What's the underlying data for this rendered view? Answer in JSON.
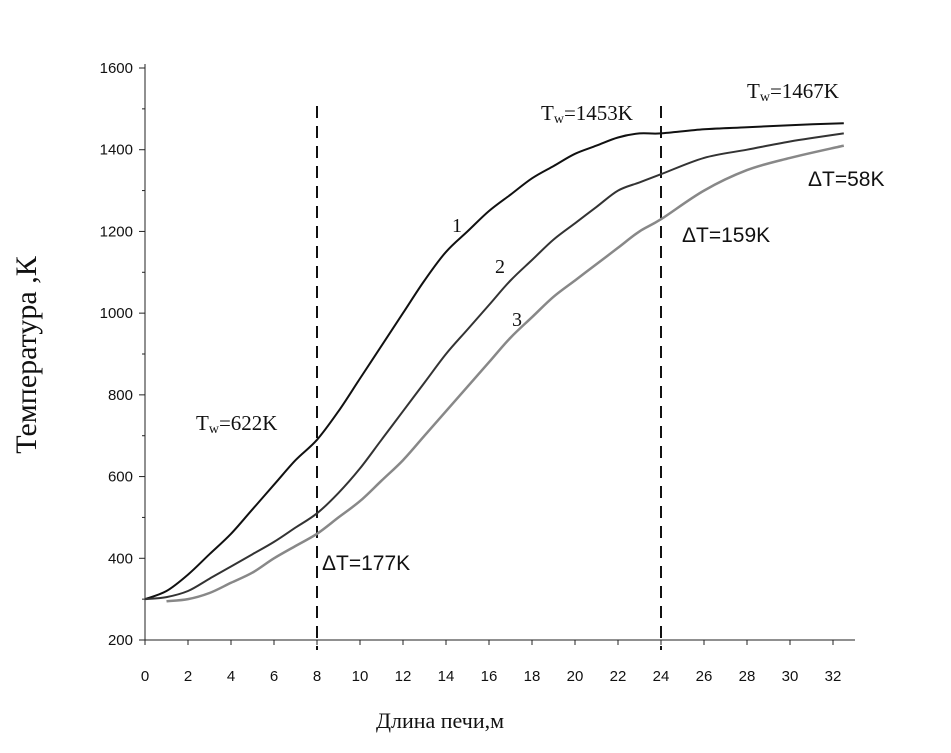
{
  "chart_data": {
    "type": "line",
    "xlabel": "Длина печи,м",
    "ylabel": "Температура ,К",
    "xlim": [
      0,
      32
    ],
    "ylim": [
      200,
      1600
    ],
    "xticks": [
      0,
      2,
      4,
      6,
      8,
      10,
      12,
      14,
      16,
      18,
      20,
      22,
      24,
      26,
      28,
      30,
      32
    ],
    "yticks": [
      200,
      400,
      600,
      800,
      1000,
      1200,
      1400,
      1600
    ],
    "grid": false,
    "colors": {
      "curve1": "#111111",
      "curve2": "#333333",
      "curve3": "#888888",
      "vline": "#111111"
    },
    "vlines": [
      8,
      24
    ],
    "series": [
      {
        "name": "1",
        "x": [
          0,
          1,
          2,
          3,
          4,
          5,
          6,
          7,
          8,
          9,
          10,
          11,
          12,
          13,
          14,
          15,
          16,
          17,
          18,
          19,
          20,
          21,
          22,
          23,
          24,
          26,
          28,
          30,
          32.5
        ],
        "values": [
          300,
          320,
          360,
          410,
          460,
          520,
          580,
          640,
          690,
          760,
          840,
          920,
          1000,
          1080,
          1150,
          1200,
          1250,
          1290,
          1330,
          1360,
          1390,
          1410,
          1430,
          1440,
          1440,
          1450,
          1455,
          1460,
          1465
        ]
      },
      {
        "name": "2",
        "x": [
          0,
          1,
          2,
          3,
          4,
          5,
          6,
          7,
          8,
          9,
          10,
          11,
          12,
          13,
          14,
          15,
          16,
          17,
          18,
          19,
          20,
          21,
          22,
          23,
          24,
          26,
          28,
          30,
          32.5
        ],
        "values": [
          300,
          305,
          320,
          350,
          380,
          410,
          440,
          475,
          510,
          560,
          620,
          690,
          760,
          830,
          900,
          960,
          1020,
          1080,
          1130,
          1180,
          1220,
          1260,
          1300,
          1320,
          1340,
          1380,
          1400,
          1420,
          1440
        ]
      },
      {
        "name": "3",
        "x": [
          1,
          2,
          3,
          4,
          5,
          6,
          7,
          8,
          9,
          10,
          11,
          12,
          13,
          14,
          15,
          16,
          17,
          18,
          19,
          20,
          21,
          22,
          23,
          24,
          26,
          28,
          30,
          32.5
        ],
        "values": [
          295,
          300,
          315,
          340,
          365,
          400,
          430,
          460,
          500,
          540,
          590,
          640,
          700,
          760,
          820,
          880,
          940,
          990,
          1040,
          1080,
          1120,
          1160,
          1200,
          1230,
          1300,
          1350,
          1380,
          1410
        ]
      }
    ],
    "annotations": {
      "tw_622": {
        "main": "T",
        "sub": "w",
        "rest": "=622K"
      },
      "dt_177": "ΔT=177K",
      "tw_1453": {
        "main": "T",
        "sub": "w",
        "rest": "=1453K"
      },
      "dt_159": "ΔT=159K",
      "tw_1467": {
        "main": "T",
        "sub": "w",
        "rest": "=1467K"
      },
      "dt_58": "ΔT=58K"
    }
  }
}
